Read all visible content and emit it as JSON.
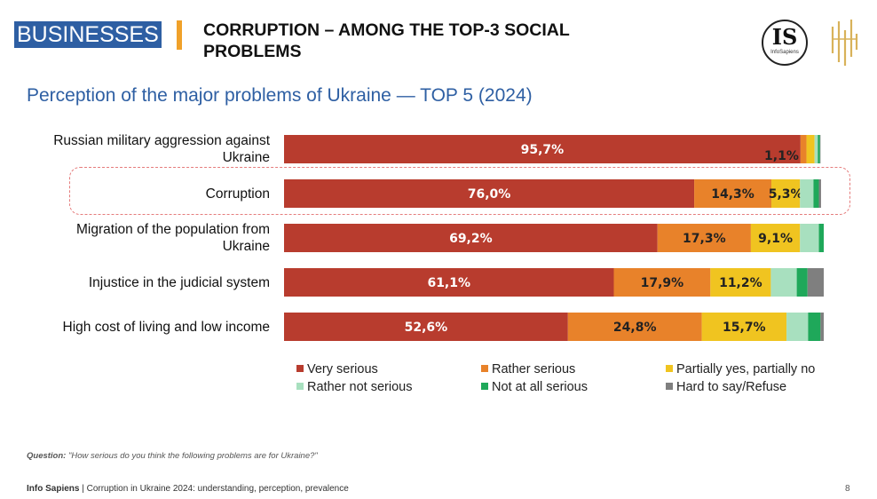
{
  "header": {
    "tag": "BUSINESSES",
    "headline_line1": "CORRUPTION – AMONG THE TOP-3 SOCIAL",
    "headline_line2": "PROBLEMS",
    "logo_text": "IS",
    "logo_sub": "InfoSapiens"
  },
  "colors": {
    "very_serious": "#b83c2e",
    "rather_serious": "#e8822a",
    "partially": "#f0c420",
    "rather_not": "#a8e0bf",
    "not_at_all": "#1fa85a",
    "hard_to_say": "#7f7f7f",
    "accent": "#2e5fa3",
    "gold": "#d8b25a"
  },
  "chart_data": {
    "type": "bar",
    "orientation": "horizontal",
    "stacked": true,
    "title": "Perception of the major problems of Ukraine — TOP 5 (2024)",
    "categories": [
      "Russian military aggression against Ukraine",
      "Corruption",
      "Migration of the population from Ukraine",
      "Injustice in the judicial system",
      "High cost of living and low income"
    ],
    "category_lines": [
      [
        "Russian military aggression against",
        "Ukraine"
      ],
      [
        "Corruption"
      ],
      [
        "Migration of the population from",
        "Ukraine"
      ],
      [
        "Injustice in the judicial system"
      ],
      [
        "High cost of living and low income"
      ]
    ],
    "series": [
      {
        "name": "Very serious",
        "values": [
          95.7,
          76.0,
          69.2,
          61.1,
          52.6
        ],
        "labels": [
          "95,7%",
          "76,0%",
          "69,2%",
          "61,1%",
          "52,6%"
        ]
      },
      {
        "name": "Rather serious",
        "values": [
          1.1,
          14.3,
          17.3,
          17.9,
          24.8
        ],
        "labels": [
          "",
          "14,3%",
          "17,3%",
          "17,9%",
          "24,8%"
        ]
      },
      {
        "name": "Partially yes, partially no",
        "values": [
          1.5,
          5.3,
          9.1,
          11.2,
          15.7
        ],
        "labels": [
          "",
          "5,3%",
          "9,1%",
          "11,2%",
          "15,7%"
        ]
      },
      {
        "name": "Rather not serious",
        "values": [
          0.6,
          2.5,
          3.5,
          4.8,
          4.0
        ],
        "labels": [
          "",
          "",
          "",
          "",
          ""
        ]
      },
      {
        "name": "Not at all serious",
        "values": [
          0.4,
          1.0,
          0.9,
          2.0,
          2.3
        ],
        "labels": [
          "",
          "",
          "",
          "",
          ""
        ]
      },
      {
        "name": "Hard to say/Refuse",
        "values": [
          0.1,
          0.4,
          0.0,
          3.0,
          0.6
        ],
        "labels": [
          "",
          "",
          "",
          "",
          ""
        ]
      }
    ],
    "outside_label": {
      "category_index": 0,
      "series_index": 1,
      "text": "1,1%"
    },
    "highlight_category": "Corruption",
    "xlim": [
      0,
      100
    ],
    "legend_position": "bottom",
    "grid": false
  },
  "legend": [
    "Very serious",
    "Rather serious",
    "Partially yes, partially no",
    "Rather not serious",
    "Not at all serious",
    "Hard to say/Refuse"
  ],
  "footnote": {
    "question_label": "Question:",
    "question_text": "\"How serious do you think the following problems are for Ukraine?\""
  },
  "footer": {
    "brand": "Info Sapiens",
    "text": " | Corruption in Ukraine 2024: understanding, perception, prevalence",
    "page": "8"
  }
}
